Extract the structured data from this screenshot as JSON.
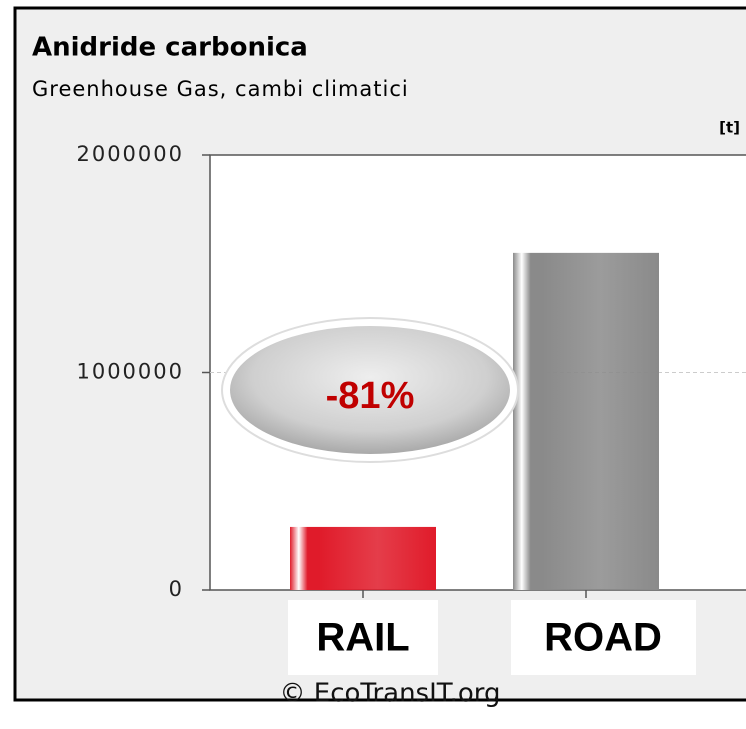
{
  "chart_data": {
    "type": "bar",
    "title": "Anidride carbonica",
    "subtitle": "Greenhouse Gas, cambi climatici",
    "unit": "[t]",
    "categories": [
      "RAIL",
      "ROAD"
    ],
    "values": [
      290000,
      1550000
    ],
    "colors": [
      "#e01b2a",
      "#8a8a8a"
    ],
    "ylim": [
      0,
      2000000
    ],
    "yticks": [
      0,
      1000000,
      2000000
    ],
    "grid": true,
    "annotation": "-81%",
    "footer": "© EcoTransIT.org"
  }
}
